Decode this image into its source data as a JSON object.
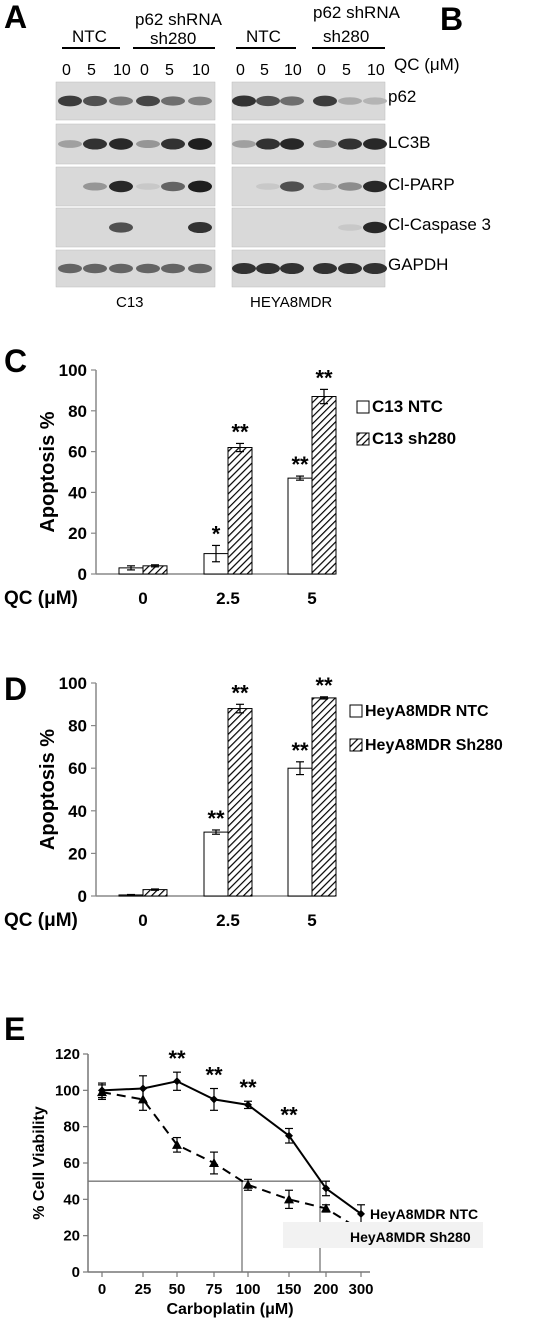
{
  "panels": {
    "A": "A",
    "B": "B",
    "C": "C",
    "D": "D",
    "E": "E"
  },
  "blots": {
    "ntc": "NTC",
    "shrna_line1": "p62 shRNA",
    "shrna_line2": "sh280",
    "conc_left": [
      "0",
      "5",
      "10",
      "0",
      "5",
      "10"
    ],
    "conc_right": [
      "0",
      "5",
      "10",
      "0",
      "5",
      "10"
    ],
    "qc_unit": "QC (μM)",
    "proteins": [
      "p62",
      "LC3B",
      "Cl-PARP",
      "Cl-Caspase 3",
      "GAPDH"
    ],
    "cell_left": "C13",
    "cell_right": "HEYA8MDR"
  },
  "chart_data": [
    {
      "id": "C",
      "type": "bar",
      "categories": [
        "0",
        "2.5",
        "5"
      ],
      "xlabel": "QC (μM)",
      "ylabel": "Apoptosis %",
      "ylim": [
        0,
        100
      ],
      "yticks": [
        0,
        20,
        40,
        60,
        80,
        100
      ],
      "series": [
        {
          "name": "C13 NTC",
          "values": [
            3,
            10,
            47
          ],
          "errors": [
            1,
            4,
            1
          ],
          "annotations": [
            "",
            "*",
            "**"
          ],
          "pattern": "white"
        },
        {
          "name": "C13 sh280",
          "values": [
            4,
            62,
            87
          ],
          "errors": [
            0.5,
            2,
            3.5
          ],
          "annotations": [
            "",
            "**",
            "**"
          ],
          "pattern": "hatch"
        }
      ],
      "legend": "right"
    },
    {
      "id": "D",
      "type": "bar",
      "categories": [
        "0",
        "2.5",
        "5"
      ],
      "xlabel": "QC (μM)",
      "ylabel": "Apoptosis %",
      "ylim": [
        0,
        100
      ],
      "yticks": [
        0,
        20,
        40,
        60,
        80,
        100
      ],
      "series": [
        {
          "name": "HeyA8MDR NTC",
          "values": [
            0.5,
            30,
            60
          ],
          "errors": [
            0.2,
            1,
            3
          ],
          "annotations": [
            "",
            "**",
            "**"
          ],
          "pattern": "white"
        },
        {
          "name": "HeyA8MDR Sh280",
          "values": [
            3,
            88,
            93
          ],
          "errors": [
            0.3,
            2,
            0.5
          ],
          "annotations": [
            "",
            "**",
            "**"
          ],
          "pattern": "hatch"
        }
      ],
      "legend": "right"
    },
    {
      "id": "E",
      "type": "line",
      "x": [
        "0",
        "25",
        "50",
        "75",
        "100",
        "150",
        "200",
        "300"
      ],
      "xlabel": "Carboplatin (μM)",
      "ylabel": "% Cell Viability",
      "ylim": [
        0,
        120
      ],
      "yticks": [
        0,
        20,
        40,
        60,
        80,
        100,
        120
      ],
      "series": [
        {
          "name": "HeyA8MDR NTC",
          "values": [
            100,
            101,
            105,
            95,
            92,
            75,
            46,
            32
          ],
          "errors": [
            4,
            7,
            5,
            6,
            2,
            4,
            4,
            5
          ],
          "marker": "diamond",
          "dash": "solid",
          "annotations": [
            "",
            "",
            "**",
            "**",
            "**",
            "**",
            "",
            ""
          ]
        },
        {
          "name": "HeyA8MDR Sh280",
          "values": [
            99,
            95,
            70,
            60,
            48,
            40,
            35,
            23
          ],
          "errors": [
            4,
            6,
            4,
            6,
            3,
            5,
            2,
            2
          ],
          "marker": "triangle",
          "dash": "dashed",
          "annotations": [
            "",
            "",
            "",
            "",
            "",
            "",
            "",
            ""
          ]
        }
      ],
      "reference_y": 50,
      "reference_x_positions": [
        100,
        200
      ],
      "legend": "inline-right"
    }
  ]
}
